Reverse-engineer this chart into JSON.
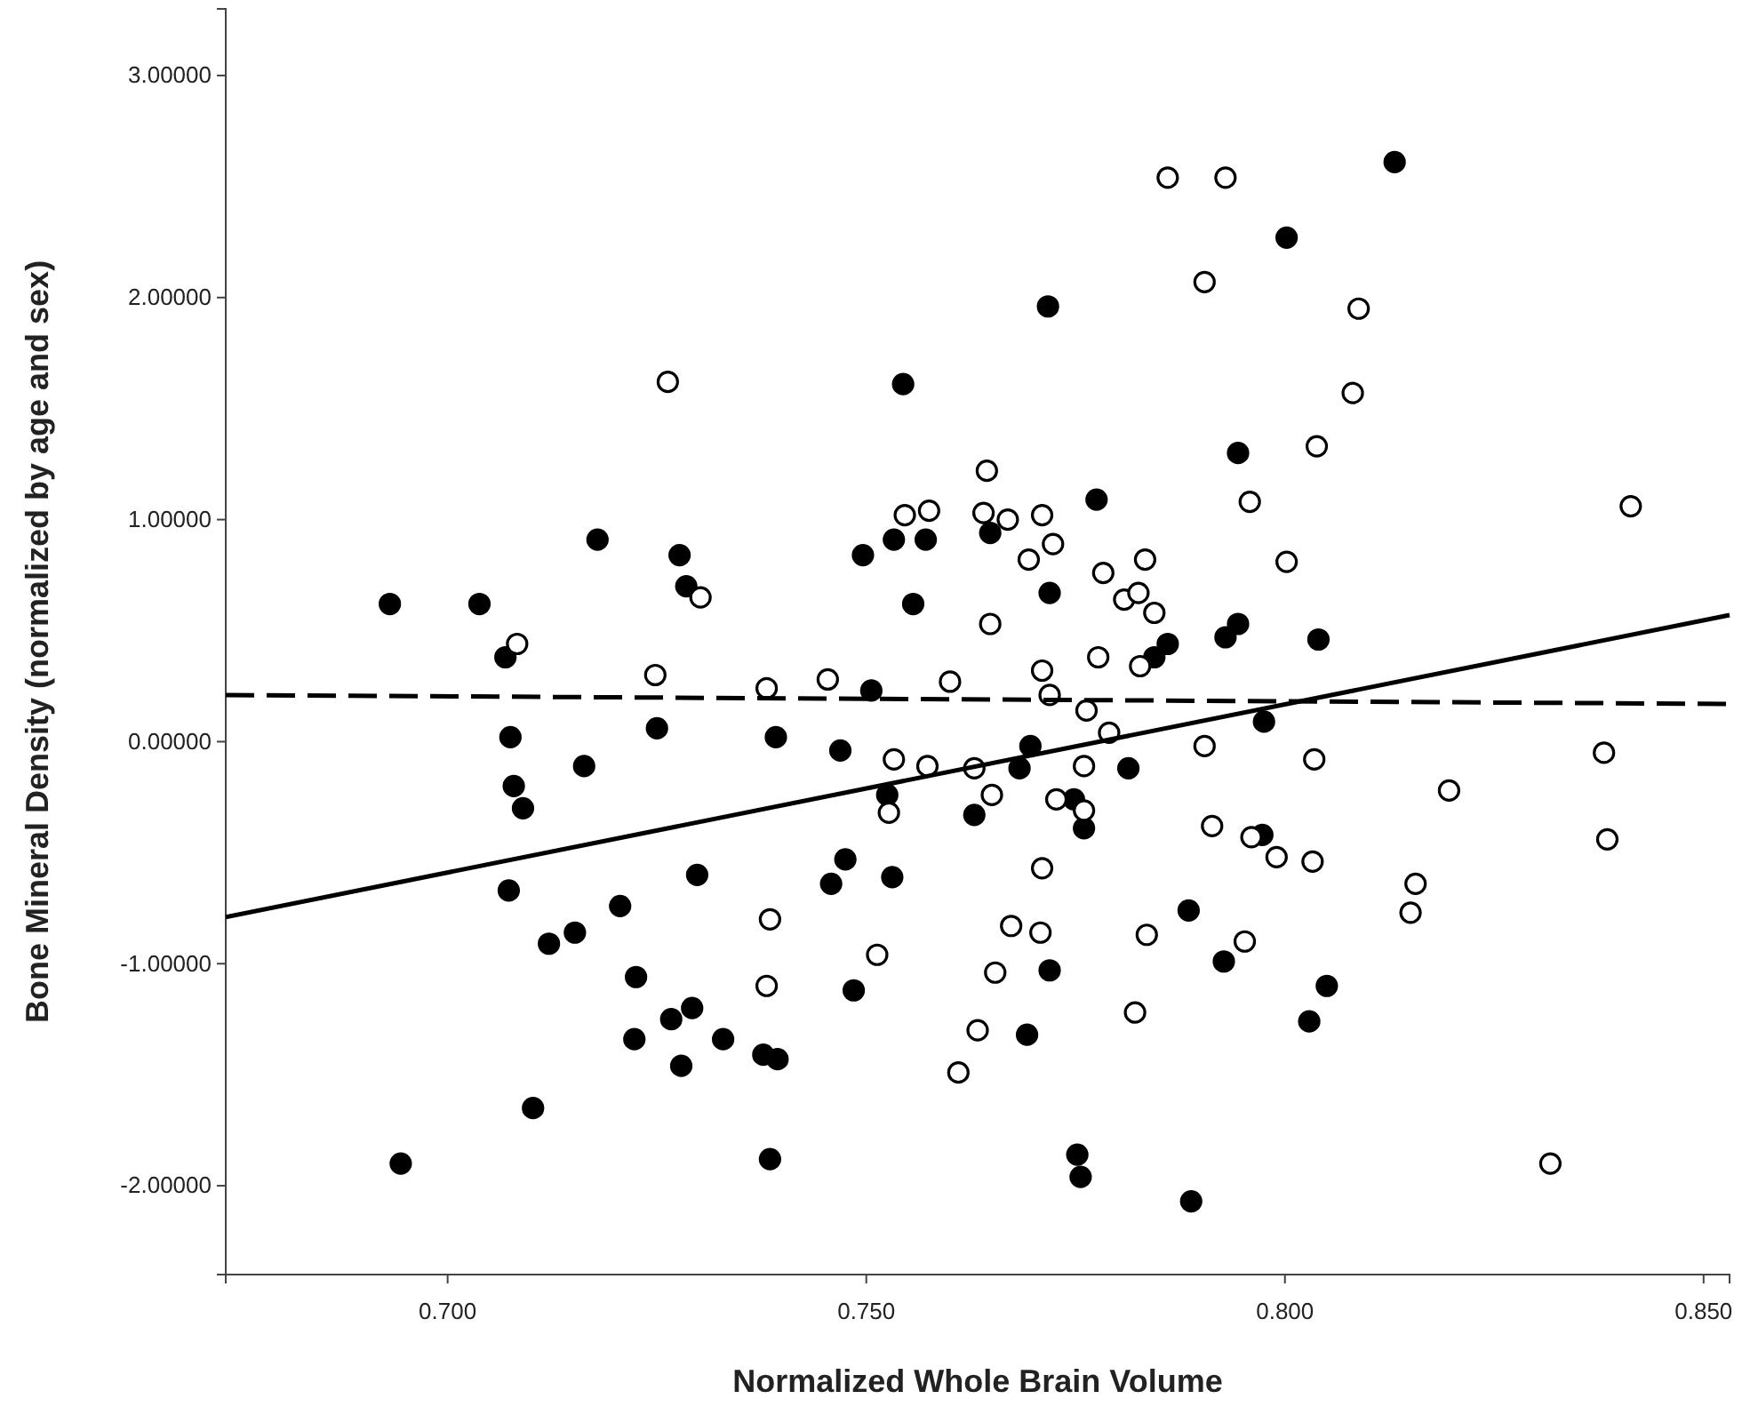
{
  "chart_data": {
    "type": "scatter",
    "xlabel": "Normalized Whole Brain Volume",
    "ylabel": "Bone Mineral Density (normalized by age and sex)",
    "xlim": [
      0.6735,
      0.8531
    ],
    "ylim": [
      -2.4,
      3.3
    ],
    "xticks": [
      {
        "value": 0.7,
        "label": "0.700"
      },
      {
        "value": 0.75,
        "label": "0.750"
      },
      {
        "value": 0.8,
        "label": "0.800"
      },
      {
        "value": 0.85,
        "label": "0.850"
      }
    ],
    "yticks": [
      {
        "value": -2,
        "label": "-2.00000"
      },
      {
        "value": -1,
        "label": "-1.00000"
      },
      {
        "value": 0,
        "label": "0.00000"
      },
      {
        "value": 1,
        "label": "1.00000"
      },
      {
        "value": 2,
        "label": "2.00000"
      },
      {
        "value": 3,
        "label": "3.00000"
      }
    ],
    "series": [
      {
        "marker": "circle",
        "color": "#000000",
        "x": [
          0.6931,
          0.6944,
          0.7038,
          0.7069,
          0.7075,
          0.7073,
          0.7079,
          0.709,
          0.7102,
          0.7121,
          0.7152,
          0.7163,
          0.7179,
          0.7206,
          0.7225,
          0.7223,
          0.725,
          0.7267,
          0.7277,
          0.7285,
          0.7292,
          0.7279,
          0.7298,
          0.7329,
          0.7377,
          0.7394,
          0.7385,
          0.7392,
          0.7458,
          0.7469,
          0.7475,
          0.7485,
          0.7496,
          0.7506,
          0.7525,
          0.7531,
          0.7533,
          0.7544,
          0.7556,
          0.7571,
          0.7629,
          0.7648,
          0.7683,
          0.7696,
          0.7692,
          0.7719,
          0.7719,
          0.7717,
          0.7748,
          0.776,
          0.7752,
          0.7756,
          0.7775,
          0.7813,
          0.7844,
          0.786,
          0.7888,
          0.7885,
          0.7927,
          0.7929,
          0.7944,
          0.7944,
          0.7973,
          0.7975,
          0.8002,
          0.8029,
          0.804,
          0.805,
          0.8131
        ],
        "values": [
          0.62,
          -1.9,
          0.62,
          0.38,
          0.02,
          -0.67,
          -0.2,
          -0.3,
          -1.65,
          -0.91,
          -0.86,
          -0.11,
          0.91,
          -0.74,
          -1.06,
          -1.34,
          0.06,
          -1.25,
          0.84,
          0.7,
          -1.2,
          -1.46,
          -0.6,
          -1.34,
          -1.41,
          -1.43,
          -1.88,
          0.02,
          -0.64,
          -0.04,
          -0.53,
          -1.12,
          0.84,
          0.23,
          -0.24,
          -0.61,
          0.91,
          1.61,
          0.62,
          0.91,
          -0.33,
          0.94,
          -0.12,
          -0.02,
          -1.32,
          0.67,
          -1.03,
          1.96,
          -0.26,
          -0.39,
          -1.86,
          -1.96,
          1.09,
          -0.12,
          0.38,
          0.44,
          -2.07,
          -0.76,
          -0.99,
          0.47,
          0.53,
          1.3,
          -0.42,
          0.09,
          2.27,
          -1.26,
          0.46,
          -1.1,
          2.61
        ]
      },
      {
        "marker": "circle",
        "color": "#ffffff",
        "x": [
          0.7083,
          0.7248,
          0.7263,
          0.7302,
          0.7381,
          0.7385,
          0.7381,
          0.7454,
          0.7513,
          0.7527,
          0.7533,
          0.7546,
          0.7575,
          0.7573,
          0.76,
          0.761,
          0.7629,
          0.7633,
          0.764,
          0.7644,
          0.7648,
          0.765,
          0.7654,
          0.7669,
          0.7673,
          0.7694,
          0.7708,
          0.771,
          0.771,
          0.771,
          0.7719,
          0.7723,
          0.7727,
          0.776,
          0.776,
          0.7763,
          0.7777,
          0.7783,
          0.779,
          0.7808,
          0.7821,
          0.7825,
          0.7827,
          0.7833,
          0.7835,
          0.7844,
          0.786,
          0.7904,
          0.7904,
          0.7913,
          0.7929,
          0.7952,
          0.7958,
          0.796,
          0.799,
          0.8002,
          0.8033,
          0.8035,
          0.8038,
          0.8081,
          0.8088,
          0.815,
          0.8156,
          0.8196,
          0.8317,
          0.8381,
          0.8385,
          0.8413
        ],
        "values": [
          0.44,
          0.3,
          1.62,
          0.65,
          0.24,
          -0.8,
          -1.1,
          0.28,
          -0.96,
          -0.32,
          -0.08,
          1.02,
          1.04,
          -0.11,
          0.27,
          -1.49,
          -0.12,
          -1.3,
          1.03,
          1.22,
          0.53,
          -0.24,
          -1.04,
          1.0,
          -0.83,
          0.82,
          -0.86,
          1.02,
          0.32,
          -0.57,
          0.21,
          0.89,
          -0.26,
          -0.11,
          -0.31,
          0.14,
          0.38,
          0.76,
          0.04,
          0.64,
          -1.22,
          0.67,
          0.34,
          0.82,
          -0.87,
          0.58,
          2.54,
          -0.02,
          2.07,
          -0.38,
          2.54,
          -0.9,
          1.08,
          -0.43,
          -0.52,
          0.81,
          -0.54,
          -0.08,
          1.33,
          1.57,
          1.95,
          -0.77,
          -0.64,
          -0.22,
          -1.9,
          -0.05,
          -0.44,
          1.06
        ]
      },
      {
        "type": "line",
        "color": "#000000",
        "line_style": "solid",
        "x": [
          0.6735,
          0.8531
        ],
        "values": [
          -0.79,
          0.57
        ]
      },
      {
        "type": "line",
        "color": "#000000",
        "line_style": "dashed",
        "x": [
          0.6735,
          0.8531
        ],
        "values": [
          0.21,
          0.17
        ]
      }
    ]
  }
}
